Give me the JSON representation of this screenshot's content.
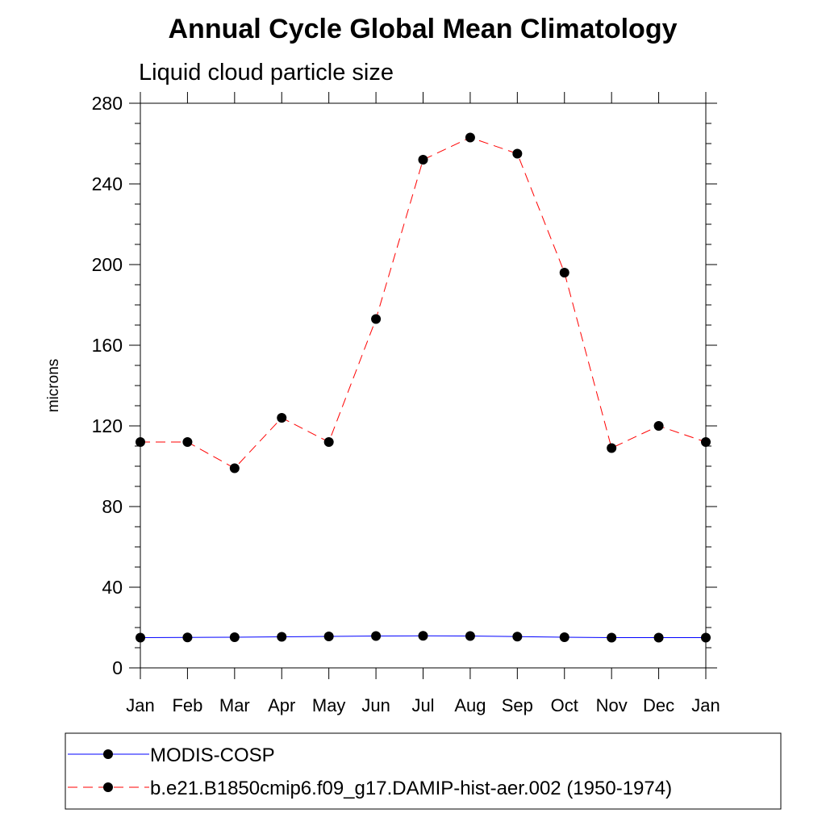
{
  "chart_data": {
    "type": "line",
    "title": "Annual Cycle Global Mean Climatology",
    "subtitle": "Liquid cloud particle size",
    "xlabel": "",
    "ylabel": "microns",
    "categories": [
      "Jan",
      "Feb",
      "Mar",
      "Apr",
      "May",
      "Jun",
      "Jul",
      "Aug",
      "Sep",
      "Oct",
      "Nov",
      "Dec",
      "Jan"
    ],
    "yticks": [
      "0",
      "40",
      "80",
      "120",
      "160",
      "200",
      "240",
      "280"
    ],
    "ylim": [
      0,
      280
    ],
    "grid": false,
    "legend_position": "bottom",
    "series": [
      {
        "name": "MODIS-COSP",
        "color": "#0000ff",
        "line_style": "solid",
        "marker": "filled-circle",
        "values": [
          15.0,
          15.1,
          15.2,
          15.4,
          15.6,
          15.8,
          15.9,
          15.8,
          15.5,
          15.2,
          15.0,
          15.0,
          15.0
        ]
      },
      {
        "name": "b.e21.B1850cmip6.f09_g17.DAMIP-hist-aer.002 (1950-1974)",
        "color": "#ff0000",
        "line_style": "dashed",
        "marker": "filled-circle",
        "values": [
          112,
          112,
          99,
          124,
          112,
          173,
          252,
          263,
          255,
          196,
          109,
          120,
          112
        ]
      }
    ]
  }
}
